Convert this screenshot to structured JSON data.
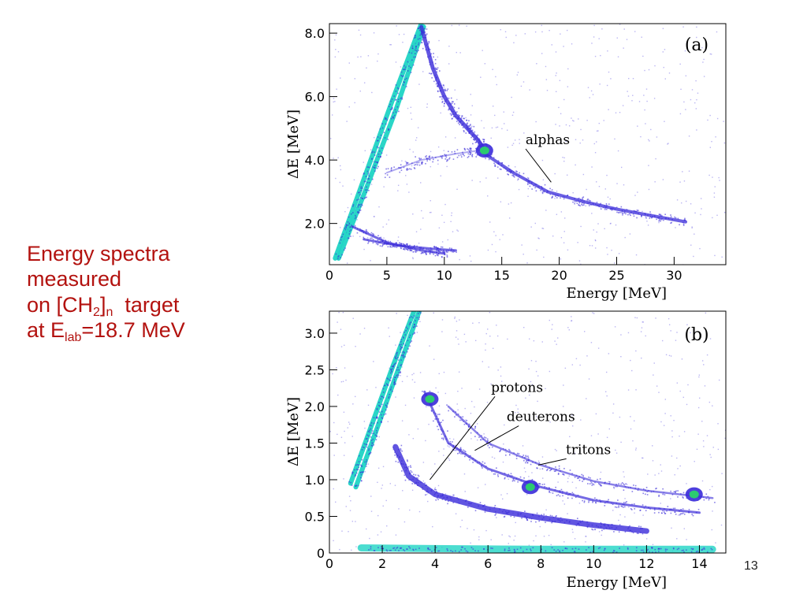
{
  "caption": {
    "line1": "Energy spectra",
    "line2": "measured",
    "line3_pre": "on [CH",
    "line3_sub1": "2",
    "line3_mid": "]",
    "line3_sub2": "n",
    "line3_post": "  target",
    "line4_pre": "at E",
    "line4_sub": "lab",
    "line4_post": "=18.7 MeV"
  },
  "page_number": "13",
  "colors": {
    "caption": "#b3120f",
    "hist_low": "#3a2bd9",
    "hist_high": "#1fd4c4",
    "hist_peak": "#2ad36a"
  },
  "chart_data": [
    {
      "type": "heatmap",
      "panel_label": "(a)",
      "xlabel": "Energy [MeV]",
      "ylabel": "ΔE [MeV]",
      "xlim": [
        0,
        34.5
      ],
      "ylim": [
        0.7,
        8.3
      ],
      "xticks": [
        0,
        5,
        10,
        15,
        20,
        25,
        30
      ],
      "yticks": [
        2.0,
        4.0,
        6.0,
        8.0
      ],
      "ytick_labels": [
        "2.0",
        "4.0",
        "6.0",
        "8.0"
      ],
      "grid": false,
      "bands": [
        {
          "kind": "punch-through",
          "points": [
            [
              0.5,
              0.9
            ],
            [
              3,
              3.4
            ],
            [
              5.5,
              5.9
            ],
            [
              8,
              8.3
            ]
          ]
        },
        {
          "kind": "punch-through",
          "points": [
            [
              0.8,
              0.9
            ],
            [
              3.2,
              3.1
            ],
            [
              5.8,
              5.6
            ],
            [
              8.2,
              8.2
            ]
          ]
        },
        {
          "kind": "stopped",
          "points": [
            [
              8,
              8.2
            ],
            [
              9,
              6.9
            ],
            [
              10,
              6.0
            ],
            [
              11,
              5.4
            ],
            [
              12,
              5.0
            ],
            [
              13,
              4.6
            ],
            [
              13.5,
              4.3
            ]
          ]
        },
        {
          "kind": "alphas",
          "points": [
            [
              13.5,
              4.2
            ],
            [
              16,
              3.6
            ],
            [
              19,
              3.0
            ],
            [
              22,
              2.7
            ],
            [
              25,
              2.45
            ],
            [
              28,
              2.25
            ],
            [
              31,
              2.05
            ]
          ]
        },
        {
          "kind": "light",
          "points": [
            [
              2,
              1.9
            ],
            [
              5,
              1.4
            ],
            [
              8,
              1.15
            ],
            [
              10,
              1.05
            ]
          ]
        },
        {
          "kind": "light",
          "points": [
            [
              3,
              1.5
            ],
            [
              6,
              1.3
            ],
            [
              9,
              1.2
            ],
            [
              11,
              1.15
            ]
          ]
        },
        {
          "kind": "faint",
          "points": [
            [
              5,
              3.6
            ],
            [
              8,
              4.0
            ],
            [
              11,
              4.2
            ],
            [
              13,
              4.3
            ]
          ]
        }
      ],
      "hotspots": [
        {
          "x": 13.5,
          "y": 4.3
        }
      ],
      "annotations": [
        {
          "text": "alphas",
          "x": 19,
          "y": 4.5,
          "arrow_to": [
            19.3,
            3.3
          ]
        }
      ]
    },
    {
      "type": "heatmap",
      "panel_label": "(b)",
      "xlabel": "Energy [MeV]",
      "ylabel": "ΔE [MeV]",
      "xlim": [
        0,
        15
      ],
      "ylim": [
        0,
        3.3
      ],
      "xticks": [
        0,
        2,
        4,
        6,
        8,
        10,
        12,
        14
      ],
      "yticks": [
        0,
        0.5,
        1.0,
        1.5,
        2.0,
        2.5,
        3.0
      ],
      "ytick_labels": [
        "0",
        "0.5",
        "1.0",
        "1.5",
        "2.0",
        "2.5",
        "3.0"
      ],
      "grid": false,
      "bands": [
        {
          "kind": "punch-through",
          "points": [
            [
              0.8,
              0.95
            ],
            [
              1.6,
              1.75
            ],
            [
              2.4,
              2.55
            ],
            [
              3.2,
              3.3
            ]
          ]
        },
        {
          "kind": "punch-through",
          "points": [
            [
              1.0,
              0.9
            ],
            [
              1.8,
              1.7
            ],
            [
              2.6,
              2.5
            ],
            [
              3.4,
              3.3
            ]
          ]
        },
        {
          "kind": "protons",
          "points": [
            [
              2.5,
              1.45
            ],
            [
              3.0,
              1.05
            ],
            [
              4.0,
              0.8
            ],
            [
              6.0,
              0.6
            ],
            [
              8.0,
              0.48
            ],
            [
              10.0,
              0.38
            ],
            [
              12.0,
              0.3
            ]
          ]
        },
        {
          "kind": "deuterons",
          "points": [
            [
              3.6,
              2.2
            ],
            [
              4.5,
              1.5
            ],
            [
              6.0,
              1.15
            ],
            [
              8.0,
              0.9
            ],
            [
              10.0,
              0.72
            ],
            [
              12.0,
              0.62
            ],
            [
              14.0,
              0.55
            ]
          ]
        },
        {
          "kind": "tritons",
          "points": [
            [
              4.5,
              2.0
            ],
            [
              6.0,
              1.5
            ],
            [
              8.0,
              1.2
            ],
            [
              10.0,
              0.98
            ],
            [
              12.0,
              0.85
            ],
            [
              14.5,
              0.75
            ]
          ]
        },
        {
          "kind": "baseline",
          "points": [
            [
              1.2,
              0.07
            ],
            [
              4,
              0.06
            ],
            [
              8,
              0.05
            ],
            [
              12,
              0.05
            ],
            [
              14.5,
              0.05
            ]
          ]
        }
      ],
      "hotspots": [
        {
          "x": 3.8,
          "y": 2.1
        },
        {
          "x": 7.6,
          "y": 0.9
        },
        {
          "x": 13.8,
          "y": 0.8
        }
      ],
      "annotations": [
        {
          "text": "protons",
          "x": 7.1,
          "y": 2.2,
          "arrow_to": [
            3.8,
            1.0
          ]
        },
        {
          "text": "deuterons",
          "x": 8.0,
          "y": 1.8,
          "arrow_to": [
            5.5,
            1.4
          ]
        },
        {
          "text": "tritons",
          "x": 9.8,
          "y": 1.35,
          "arrow_to": [
            7.9,
            1.2
          ]
        }
      ]
    }
  ]
}
